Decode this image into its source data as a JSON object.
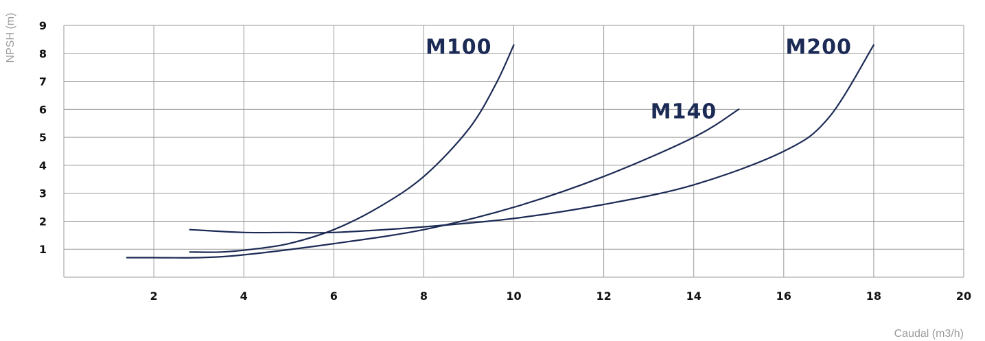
{
  "colors": {
    "curve": "#1c2b55",
    "grid": "#9a9a9a",
    "ticks": "#111111",
    "axis_title": "#9a9a9a"
  },
  "chart_data": {
    "type": "line",
    "title": "",
    "xlabel": "Caudal (m3/h)",
    "ylabel": "NPSH (m)",
    "xlim": [
      0,
      20
    ],
    "ylim": [
      0,
      9
    ],
    "grid": true,
    "x_ticks": [
      "2",
      "4",
      "6",
      "8",
      "10",
      "12",
      "14",
      "16",
      "18",
      "20"
    ],
    "y_ticks": [
      "1",
      "2",
      "3",
      "4",
      "5",
      "6",
      "7",
      "8",
      "9"
    ],
    "series": [
      {
        "name": "M100",
        "x": [
          2.8,
          3.5,
          4.2,
          5.0,
          6.0,
          7.0,
          8.0,
          9.0,
          9.6,
          10.0
        ],
        "y": [
          0.9,
          0.9,
          1.0,
          1.2,
          1.7,
          2.5,
          3.6,
          5.3,
          6.9,
          8.3
        ]
      },
      {
        "name": "M140",
        "x": [
          1.4,
          2.0,
          3.0,
          4.0,
          6.0,
          8.0,
          10.0,
          12.0,
          14.0,
          15.0
        ],
        "y": [
          0.7,
          0.7,
          0.7,
          0.8,
          1.2,
          1.7,
          2.5,
          3.6,
          5.0,
          6.0
        ]
      },
      {
        "name": "M200",
        "x": [
          2.8,
          4.0,
          5.0,
          6.0,
          8.0,
          10.0,
          12.0,
          14.0,
          16.0,
          17.0,
          18.0
        ],
        "y": [
          1.7,
          1.6,
          1.6,
          1.6,
          1.8,
          2.1,
          2.6,
          3.3,
          4.5,
          5.7,
          8.3
        ]
      }
    ]
  }
}
